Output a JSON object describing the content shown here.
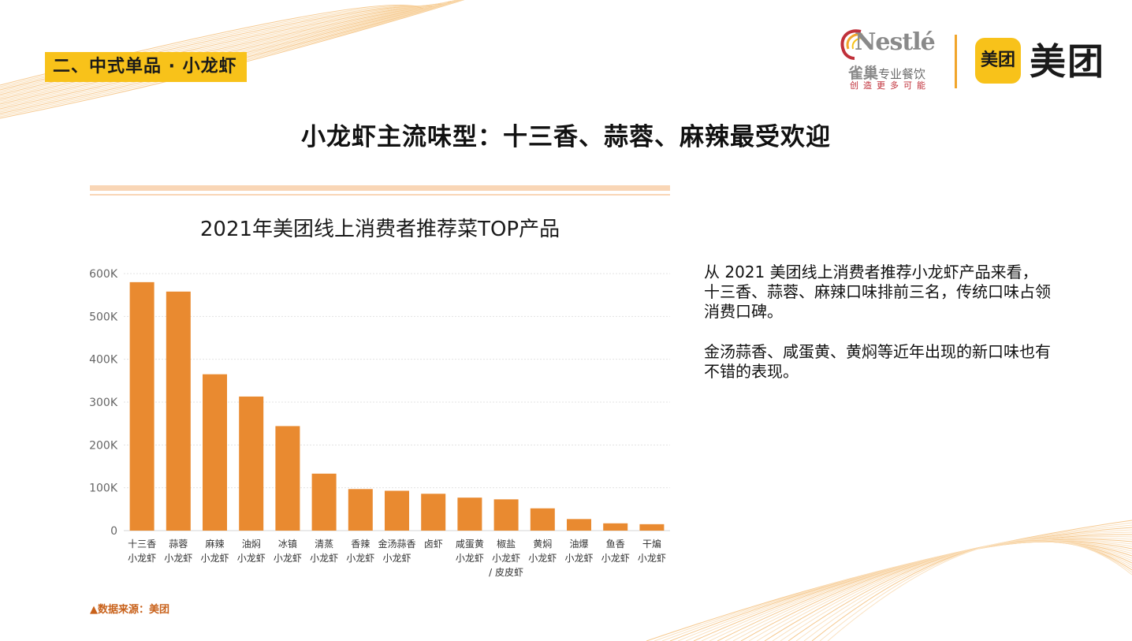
{
  "header": {
    "section_tag": "二、中式单品 · 小龙虾",
    "nestle_brand": "Nestlé",
    "nestle_sub_cn": "雀巢",
    "nestle_sub_tail": "专业餐饮",
    "nestle_slogan": "创造更多可能",
    "meituan_badge": "美团",
    "meituan_word": "美团"
  },
  "page_title": "小龙虾主流味型：十三香、蒜蓉、麻辣最受欢迎",
  "chart_data": {
    "type": "bar",
    "title": "2021年美团线上消费者推荐菜TOP产品",
    "xlabel": "",
    "ylabel": "",
    "ylim": [
      0,
      600000
    ],
    "yticks": [
      0,
      100000,
      200000,
      300000,
      400000,
      500000,
      600000
    ],
    "ytick_labels": [
      "0",
      "100K",
      "200K",
      "300K",
      "400K",
      "500K",
      "600K"
    ],
    "grid": true,
    "bar_color": "#e98a30",
    "categories": [
      [
        "十三香",
        "小龙虾"
      ],
      [
        "蒜蓉",
        "小龙虾"
      ],
      [
        "麻辣",
        "小龙虾"
      ],
      [
        "油焖",
        "小龙虾"
      ],
      [
        "冰镇",
        "小龙虾"
      ],
      [
        "清蒸",
        "小龙虾"
      ],
      [
        "香辣",
        "小龙虾"
      ],
      [
        "金汤蒜香",
        "小龙虾"
      ],
      [
        "卤虾"
      ],
      [
        "咸蛋黄",
        "小龙虾"
      ],
      [
        "椒盐",
        "小龙虾",
        "/ 皮皮虾"
      ],
      [
        "黄焖",
        "小龙虾"
      ],
      [
        "油爆",
        "小龙虾"
      ],
      [
        "鱼香",
        "小龙虾"
      ],
      [
        "干煸",
        "小龙虾"
      ]
    ],
    "values": [
      580000,
      558000,
      365000,
      313000,
      244000,
      133000,
      97000,
      93000,
      86000,
      77000,
      73000,
      52000,
      27000,
      17000,
      15000
    ]
  },
  "description": {
    "p1": "从 2021 美团线上消费者推荐小龙虾产品来看，十三香、蒜蓉、麻辣口味排前三名，传统口味占领消费口碑。",
    "p2": "金汤蒜香、咸蛋黄、黄焖等近年出现的新口味也有不错的表现。"
  },
  "source": "▲数据来源：美团"
}
